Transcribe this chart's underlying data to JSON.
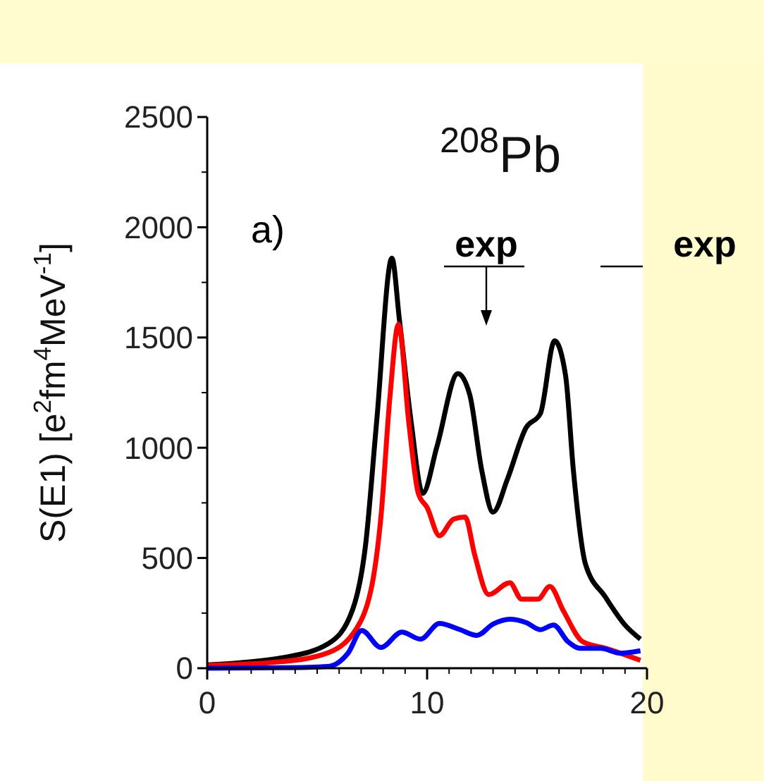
{
  "chart_data": {
    "type": "line",
    "title": "$^{208}$Pb",
    "ylabel": "S(E1) [e$^{2}$fm$^{4}$MeV$^{-1}$]",
    "annotations": [
      "a)",
      "exp",
      "exp"
    ],
    "xlim": [
      0,
      20
    ],
    "xticks": [
      0,
      10,
      20
    ],
    "ylim": [
      0,
      2500
    ],
    "yticks": [
      0,
      500,
      1000,
      1500,
      2000,
      2500
    ],
    "grid": false,
    "line_style": "solid",
    "marker": "none",
    "series": [
      {
        "color": "#000000",
        "x": [
          0,
          1.5,
          3.4,
          5.5,
          6.6,
          7.2,
          7.7,
          8.4,
          8.74,
          9.28,
          9.8,
          10.45,
          11.4,
          11.94,
          12.48,
          13.0,
          13.65,
          14.5,
          15.15,
          15.8,
          16.3,
          16.65,
          17.2,
          18.1,
          19.0,
          19.7
        ],
        "values": [
          15,
          25,
          47,
          111,
          262,
          558,
          1112,
          1860,
          1581,
          1112,
          793,
          1006,
          1336,
          1240,
          900,
          708,
          857,
          1091,
          1155,
          1485,
          1325,
          900,
          473,
          324,
          196,
          132
        ]
      },
      {
        "color": "#ff0000",
        "x": [
          0,
          3.4,
          5.5,
          7.0,
          7.9,
          8.3,
          8.7,
          9.17,
          9.6,
          10.0,
          10.56,
          11.2,
          11.73,
          12.16,
          12.8,
          13.76,
          14.3,
          15.04,
          15.58,
          16.2,
          17.07,
          18.14,
          19.7
        ],
        "values": [
          13,
          30,
          70,
          217,
          686,
          1219,
          1560,
          1112,
          793,
          729,
          601,
          676,
          686,
          516,
          334,
          388,
          313,
          313,
          371,
          260,
          121,
          90,
          36
        ]
      },
      {
        "color": "#0000ff",
        "x": [
          0,
          3.4,
          5.5,
          6.4,
          7.03,
          7.9,
          8.85,
          9.7,
          10.56,
          11.5,
          12.26,
          13.0,
          13.76,
          14.5,
          15.15,
          15.75,
          16.4,
          16.97,
          17.9,
          18.78,
          19.7
        ],
        "values": [
          0,
          2,
          8,
          68,
          171,
          94,
          164,
          132,
          203,
          175,
          149,
          200,
          222,
          207,
          175,
          196,
          121,
          90,
          90,
          68,
          79
        ]
      }
    ]
  }
}
